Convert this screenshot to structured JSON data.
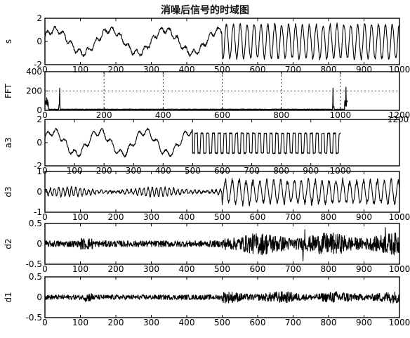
{
  "title": "消噪后信号的时域图",
  "chart_data": [
    {
      "id": "s",
      "type": "line",
      "ylabel": "s",
      "xlim": [
        0,
        1000
      ],
      "ylim": [
        -2,
        2
      ],
      "xticks": [
        0,
        100,
        200,
        300,
        400,
        500,
        600,
        700,
        800,
        900,
        1000
      ],
      "yticks": [
        -2,
        0,
        2
      ],
      "ytick_labels": [
        "-2",
        "0",
        "2"
      ],
      "grid": false,
      "description_points": "low-frequency sinusoid (period ~150) for x<500, high-frequency oscillation (period ~20) with amplitude ~1.5 for x>=500"
    },
    {
      "id": "fft",
      "type": "line",
      "ylabel": "FFT",
      "xlim": [
        0,
        1200
      ],
      "ylim": [
        0,
        400
      ],
      "xticks": [
        0,
        200,
        400,
        600,
        800,
        1000,
        1200
      ],
      "yticks": [
        0,
        200,
        400
      ],
      "ytick_labels": [
        "0",
        "200",
        "400"
      ],
      "grid": true,
      "peaks": [
        {
          "x": 6,
          "y": 130
        },
        {
          "x": 50,
          "y": 230
        },
        {
          "x": 975,
          "y": 230
        },
        {
          "x": 1019,
          "y": 240
        }
      ]
    },
    {
      "id": "a3",
      "type": "line",
      "ylabel": "a3",
      "xlim": [
        0,
        1200
      ],
      "ylim": [
        -2,
        2
      ],
      "xticks": [
        0,
        100,
        200,
        300,
        400,
        500,
        600,
        700,
        800,
        900,
        1000
      ],
      "yticks": [
        -2,
        0,
        2
      ],
      "ytick_labels": [
        "-2",
        "0",
        "2"
      ],
      "corner_label": "1200",
      "grid": false
    },
    {
      "id": "d3",
      "type": "line",
      "ylabel": "d3",
      "xlim": [
        0,
        1000
      ],
      "ylim": [
        -1,
        1
      ],
      "xticks": [
        0,
        100,
        200,
        300,
        400,
        500,
        600,
        700,
        800,
        900,
        1000
      ],
      "yticks": [
        -1,
        0,
        1
      ],
      "ytick_labels": [
        "-1",
        "0",
        "1"
      ],
      "grid": false
    },
    {
      "id": "d2",
      "type": "line",
      "ylabel": "d2",
      "xlim": [
        0,
        1000
      ],
      "ylim": [
        -0.5,
        0.5
      ],
      "xticks": [
        0,
        100,
        200,
        300,
        400,
        500,
        600,
        700,
        800,
        900,
        1000
      ],
      "yticks": [
        -0.5,
        0,
        0.5
      ],
      "ytick_labels": [
        "-0.5",
        "0",
        "0.5"
      ],
      "grid": false
    },
    {
      "id": "d1",
      "type": "line",
      "ylabel": "d1",
      "xlim": [
        0,
        1000
      ],
      "ylim": [
        -0.5,
        0.5
      ],
      "xticks": [
        0,
        100,
        200,
        300,
        400,
        500,
        600,
        700,
        800,
        900,
        1000
      ],
      "yticks": [
        -0.5,
        0,
        0.5
      ],
      "ytick_labels": [
        "-0.5",
        "0",
        "0.5"
      ],
      "grid": false
    }
  ]
}
